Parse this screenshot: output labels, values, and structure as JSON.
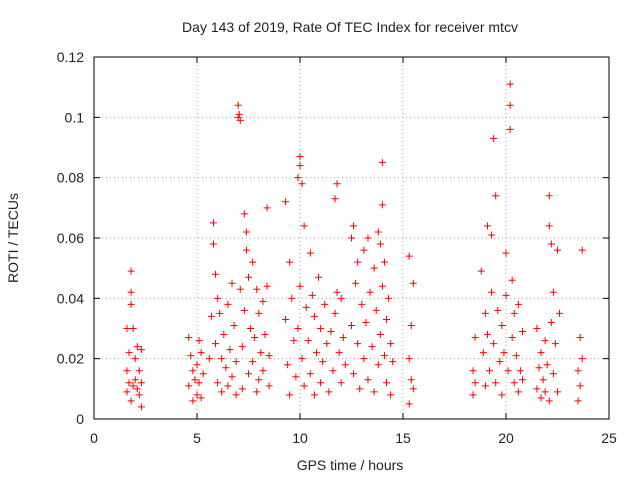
{
  "chart_data": {
    "type": "scatter",
    "title": "Day 143 of 2019, Rate Of TEC Index for receiver mtcv",
    "xlabel": "GPS time / hours",
    "ylabel": "ROTI / TECUs",
    "xlim": [
      0,
      25
    ],
    "ylim": [
      0,
      0.12
    ],
    "x_ticks": [
      "0",
      "5",
      "10",
      "15",
      "20",
      "25"
    ],
    "y_ticks": [
      "0",
      "0.02",
      "0.04",
      "0.06",
      "0.08",
      "0.1",
      "0.12"
    ],
    "grid": true,
    "marker": "+",
    "series": [
      {
        "name": "ROTI",
        "color": "#ff0000",
        "points": [
          [
            1.6,
            0.009
          ],
          [
            1.6,
            0.016
          ],
          [
            1.6,
            0.03
          ],
          [
            1.7,
            0.012
          ],
          [
            1.7,
            0.022
          ],
          [
            1.8,
            0.006
          ],
          [
            1.8,
            0.049
          ],
          [
            1.8,
            0.042
          ],
          [
            1.8,
            0.038
          ],
          [
            1.9,
            0.011
          ],
          [
            1.9,
            0.03
          ],
          [
            2.0,
            0.013
          ],
          [
            2.0,
            0.02
          ],
          [
            2.1,
            0.024
          ],
          [
            2.1,
            0.01
          ],
          [
            2.2,
            0.008
          ],
          [
            2.2,
            0.016
          ],
          [
            2.3,
            0.023
          ],
          [
            2.3,
            0.012
          ],
          [
            2.3,
            0.004
          ],
          [
            4.6,
            0.027
          ],
          [
            4.6,
            0.011
          ],
          [
            4.7,
            0.021
          ],
          [
            4.8,
            0.006
          ],
          [
            4.8,
            0.016
          ],
          [
            4.9,
            0.013
          ],
          [
            5.0,
            0.018
          ],
          [
            5.0,
            0.008
          ],
          [
            5.1,
            0.026
          ],
          [
            5.1,
            0.012
          ],
          [
            5.2,
            0.022
          ],
          [
            5.2,
            0.007
          ],
          [
            5.3,
            0.015
          ],
          [
            5.6,
            0.02
          ],
          [
            5.7,
            0.034
          ],
          [
            5.8,
            0.065
          ],
          [
            5.8,
            0.058
          ],
          [
            5.9,
            0.048
          ],
          [
            5.9,
            0.025
          ],
          [
            6.0,
            0.04
          ],
          [
            6.0,
            0.012
          ],
          [
            6.1,
            0.035
          ],
          [
            6.2,
            0.02
          ],
          [
            6.2,
            0.009
          ],
          [
            6.3,
            0.028
          ],
          [
            6.4,
            0.017
          ],
          [
            6.5,
            0.038
          ],
          [
            6.5,
            0.011
          ],
          [
            6.6,
            0.023
          ],
          [
            6.7,
            0.045
          ],
          [
            6.7,
            0.014
          ],
          [
            6.8,
            0.031
          ],
          [
            6.9,
            0.019
          ],
          [
            6.9,
            0.008
          ],
          [
            7.0,
            0.1
          ],
          [
            7.0,
            0.104
          ],
          [
            7.05,
            0.101
          ],
          [
            7.1,
            0.099
          ],
          [
            7.1,
            0.043
          ],
          [
            7.2,
            0.024
          ],
          [
            7.2,
            0.01
          ],
          [
            7.3,
            0.036
          ],
          [
            7.3,
            0.068
          ],
          [
            7.4,
            0.062
          ],
          [
            7.4,
            0.056
          ],
          [
            7.5,
            0.047
          ],
          [
            7.5,
            0.015
          ],
          [
            7.6,
            0.03
          ],
          [
            7.7,
            0.052
          ],
          [
            7.7,
            0.019
          ],
          [
            7.8,
            0.027
          ],
          [
            7.9,
            0.043
          ],
          [
            7.9,
            0.009
          ],
          [
            8.0,
            0.035
          ],
          [
            8.0,
            0.013
          ],
          [
            8.1,
            0.022
          ],
          [
            8.2,
            0.039
          ],
          [
            8.2,
            0.016
          ],
          [
            8.3,
            0.028
          ],
          [
            8.4,
            0.07
          ],
          [
            8.4,
            0.044
          ],
          [
            8.5,
            0.021
          ],
          [
            8.5,
            0.011
          ],
          [
            9.3,
            0.072
          ],
          [
            9.3,
            0.033
          ],
          [
            9.4,
            0.018
          ],
          [
            9.5,
            0.052
          ],
          [
            9.5,
            0.008
          ],
          [
            9.6,
            0.04
          ],
          [
            9.7,
            0.026
          ],
          [
            9.8,
            0.014
          ],
          [
            9.9,
            0.08
          ],
          [
            9.9,
            0.03
          ],
          [
            10.0,
            0.087
          ],
          [
            10.0,
            0.084
          ],
          [
            10.0,
            0.044
          ],
          [
            10.1,
            0.078
          ],
          [
            10.1,
            0.02
          ],
          [
            10.2,
            0.064
          ],
          [
            10.2,
            0.011
          ],
          [
            10.3,
            0.037
          ],
          [
            10.4,
            0.026
          ],
          [
            10.5,
            0.055
          ],
          [
            10.5,
            0.015
          ],
          [
            10.6,
            0.041
          ],
          [
            10.7,
            0.034
          ],
          [
            10.7,
            0.008
          ],
          [
            10.8,
            0.022
          ],
          [
            10.9,
            0.047
          ],
          [
            11.0,
            0.03
          ],
          [
            11.0,
            0.012
          ],
          [
            11.1,
            0.019
          ],
          [
            11.2,
            0.038
          ],
          [
            11.3,
            0.025
          ],
          [
            11.4,
            0.009
          ],
          [
            11.5,
            0.029
          ],
          [
            11.6,
            0.016
          ],
          [
            11.7,
            0.035
          ],
          [
            11.7,
            0.073
          ],
          [
            11.8,
            0.078
          ],
          [
            11.8,
            0.042
          ],
          [
            11.9,
            0.022
          ],
          [
            12.0,
            0.012
          ],
          [
            12.0,
            0.04
          ],
          [
            12.1,
            0.027
          ],
          [
            12.2,
            0.018
          ],
          [
            12.5,
            0.031
          ],
          [
            12.5,
            0.06
          ],
          [
            12.6,
            0.064
          ],
          [
            12.6,
            0.015
          ],
          [
            12.7,
            0.045
          ],
          [
            12.8,
            0.052
          ],
          [
            12.8,
            0.025
          ],
          [
            12.9,
            0.01
          ],
          [
            13.0,
            0.038
          ],
          [
            13.1,
            0.056
          ],
          [
            13.1,
            0.02
          ],
          [
            13.2,
            0.032
          ],
          [
            13.3,
            0.06
          ],
          [
            13.3,
            0.013
          ],
          [
            13.4,
            0.042
          ],
          [
            13.5,
            0.024
          ],
          [
            13.6,
            0.05
          ],
          [
            13.6,
            0.009
          ],
          [
            13.7,
            0.036
          ],
          [
            13.8,
            0.062
          ],
          [
            13.8,
            0.018
          ],
          [
            13.9,
            0.058
          ],
          [
            13.9,
            0.028
          ],
          [
            14.0,
            0.085
          ],
          [
            14.0,
            0.071
          ],
          [
            14.0,
            0.044
          ],
          [
            14.1,
            0.021
          ],
          [
            14.1,
            0.052
          ],
          [
            14.2,
            0.033
          ],
          [
            14.2,
            0.012
          ],
          [
            14.3,
            0.04
          ],
          [
            14.4,
            0.025
          ],
          [
            14.4,
            0.008
          ],
          [
            14.5,
            0.019
          ],
          [
            15.3,
            0.054
          ],
          [
            15.3,
            0.02
          ],
          [
            15.3,
            0.005
          ],
          [
            15.4,
            0.031
          ],
          [
            15.4,
            0.013
          ],
          [
            15.5,
            0.045
          ],
          [
            15.5,
            0.01
          ],
          [
            18.4,
            0.016
          ],
          [
            18.4,
            0.008
          ],
          [
            18.5,
            0.027
          ],
          [
            18.5,
            0.012
          ],
          [
            18.8,
            0.049
          ],
          [
            18.9,
            0.022
          ],
          [
            19.0,
            0.035
          ],
          [
            19.0,
            0.011
          ],
          [
            19.1,
            0.064
          ],
          [
            19.1,
            0.028
          ],
          [
            19.2,
            0.016
          ],
          [
            19.3,
            0.061
          ],
          [
            19.3,
            0.042
          ],
          [
            19.4,
            0.093
          ],
          [
            19.4,
            0.025
          ],
          [
            19.5,
            0.074
          ],
          [
            19.5,
            0.012
          ],
          [
            19.6,
            0.036
          ],
          [
            19.7,
            0.019
          ],
          [
            19.8,
            0.031
          ],
          [
            19.8,
            0.008
          ],
          [
            19.9,
            0.022
          ],
          [
            20.0,
            0.055
          ],
          [
            20.0,
            0.041
          ],
          [
            20.1,
            0.016
          ],
          [
            20.2,
            0.111
          ],
          [
            20.2,
            0.104
          ],
          [
            20.2,
            0.096
          ],
          [
            20.3,
            0.046
          ],
          [
            20.3,
            0.027
          ],
          [
            20.4,
            0.035
          ],
          [
            20.4,
            0.012
          ],
          [
            20.5,
            0.021
          ],
          [
            20.6,
            0.038
          ],
          [
            20.6,
            0.009
          ],
          [
            20.7,
            0.016
          ],
          [
            20.8,
            0.029
          ],
          [
            20.8,
            0.013
          ],
          [
            21.5,
            0.03
          ],
          [
            21.5,
            0.01
          ],
          [
            21.6,
            0.017
          ],
          [
            21.7,
            0.007
          ],
          [
            21.7,
            0.022
          ],
          [
            21.8,
            0.013
          ],
          [
            21.9,
            0.026
          ],
          [
            21.9,
            0.009
          ],
          [
            22.0,
            0.018
          ],
          [
            22.1,
            0.074
          ],
          [
            22.1,
            0.064
          ],
          [
            22.1,
            0.006
          ],
          [
            22.2,
            0.058
          ],
          [
            22.2,
            0.032
          ],
          [
            22.3,
            0.015
          ],
          [
            22.3,
            0.042
          ],
          [
            22.4,
            0.025
          ],
          [
            22.5,
            0.056
          ],
          [
            22.5,
            0.009
          ],
          [
            22.6,
            0.035
          ],
          [
            23.5,
            0.016
          ],
          [
            23.5,
            0.006
          ],
          [
            23.6,
            0.027
          ],
          [
            23.6,
            0.011
          ],
          [
            23.7,
            0.056
          ],
          [
            23.7,
            0.02
          ]
        ]
      }
    ]
  }
}
